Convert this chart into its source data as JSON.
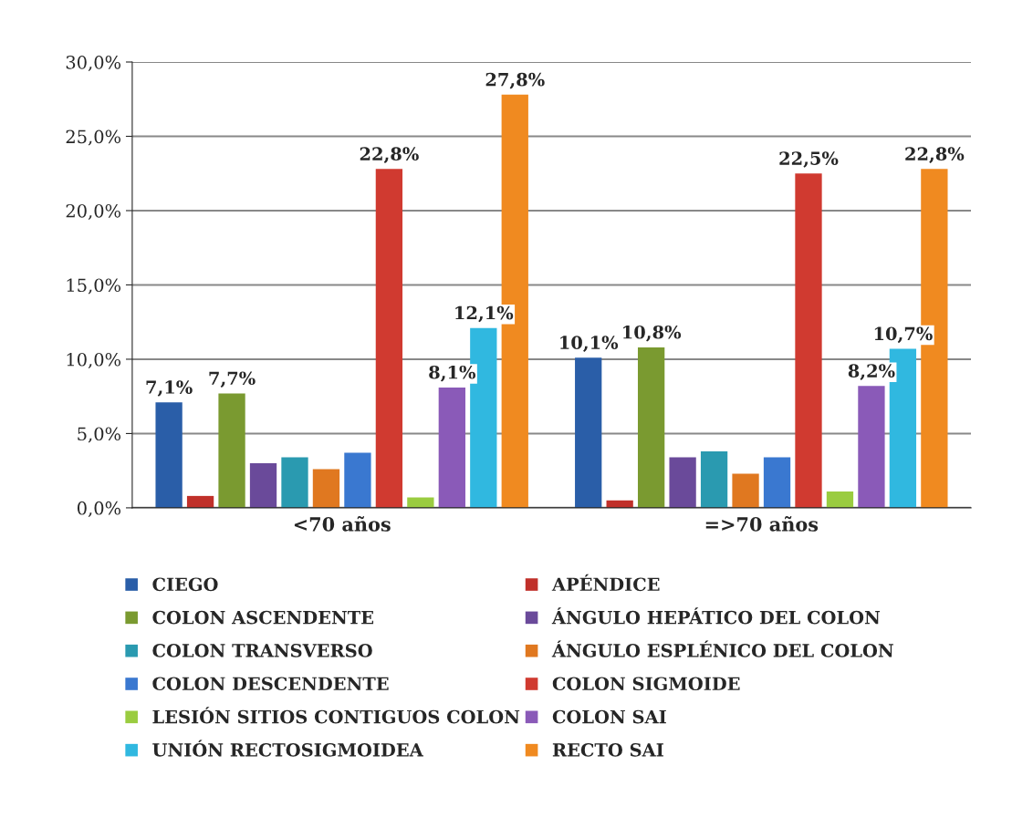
{
  "chart_data": {
    "type": "bar",
    "categories": [
      "<70 años",
      "=>70 años"
    ],
    "ylim": [
      0,
      30
    ],
    "yticks": [
      {
        "value": 0,
        "label": "0,0%"
      },
      {
        "value": 5,
        "label": "5,0%"
      },
      {
        "value": 10,
        "label": "10,0%"
      },
      {
        "value": 15,
        "label": "15,0%"
      },
      {
        "value": 20,
        "label": "20,0%"
      },
      {
        "value": 25,
        "label": "25,0%"
      },
      {
        "value": 30,
        "label": "30,0%"
      }
    ],
    "grid": "y",
    "legend": "bottom",
    "series": [
      {
        "name": "CIEGO",
        "color": "#2a5ea8",
        "values": [
          7.1,
          10.1
        ],
        "value_labels": [
          "7,1%",
          "10,1%"
        ]
      },
      {
        "name": "APÉNDICE",
        "color": "#c0302a",
        "values": [
          0.8,
          0.5
        ],
        "value_labels": [
          null,
          null
        ]
      },
      {
        "name": "COLON ASCENDENTE",
        "color": "#7a9a30",
        "values": [
          7.7,
          10.8
        ],
        "value_labels": [
          "7,7%",
          "10,8%"
        ]
      },
      {
        "name": "ÁNGULO HEPÁTICO DEL COLON",
        "color": "#6a4a9a",
        "values": [
          3.0,
          3.4
        ],
        "value_labels": [
          null,
          null
        ]
      },
      {
        "name": "COLON TRANSVERSO",
        "color": "#2a9ab0",
        "values": [
          3.4,
          3.8
        ],
        "value_labels": [
          null,
          null
        ]
      },
      {
        "name": "ÁNGULO ESPLÉNICO DEL COLON",
        "color": "#e07820",
        "values": [
          2.6,
          2.3
        ],
        "value_labels": [
          null,
          null
        ]
      },
      {
        "name": "COLON DESCENDENTE",
        "color": "#3a78d0",
        "values": [
          3.7,
          3.4
        ],
        "value_labels": [
          null,
          null
        ]
      },
      {
        "name": "COLON SIGMOIDE",
        "color": "#d03a30",
        "values": [
          22.8,
          22.5
        ],
        "value_labels": [
          "22,8%",
          "22,5%"
        ]
      },
      {
        "name": "LESIÓN SITIOS CONTIGUOS COLON",
        "color": "#9acc40",
        "values": [
          0.7,
          1.1
        ],
        "value_labels": [
          null,
          null
        ]
      },
      {
        "name": "COLON SAI",
        "color": "#8a5ab8",
        "values": [
          8.1,
          8.2
        ],
        "value_labels": [
          "8,1%",
          "8,2%"
        ]
      },
      {
        "name": "UNIÓN RECTOSIGMOIDEA",
        "color": "#30b8e0",
        "values": [
          12.1,
          10.7
        ],
        "value_labels": [
          "12,1%",
          "10,7%"
        ]
      },
      {
        "name": "RECTO SAI",
        "color": "#f08a20",
        "values": [
          27.8,
          22.8
        ],
        "value_labels": [
          "27,8%",
          "22,8%"
        ]
      }
    ]
  }
}
